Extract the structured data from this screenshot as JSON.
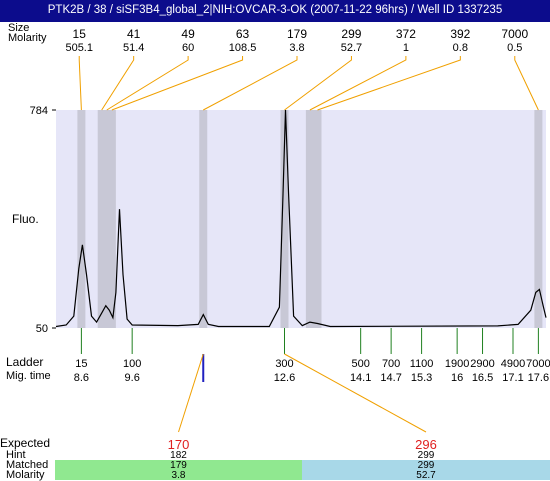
{
  "header": {
    "title": "PTK2B / 38 / siSF3B4_global_2|NIH:OVCAR-3-OK (2007-11-22 96hrs) / Well ID 1337235"
  },
  "row_labels": {
    "fluo": "Fluo.",
    "ladder": "Ladder",
    "mig_time": "Mig. time",
    "expected": "Expected",
    "hint": "Hint",
    "matched": "Matched",
    "molarity": "Molarity",
    "size_top": "Size",
    "molarity_top": "Molarity"
  },
  "colors": {
    "plot_bg": "#e6e6f8",
    "band": "#c8c8d6",
    "callout": "#f0a000",
    "ladder_tick": "#208020",
    "matched_green": "#90e890",
    "matched_blue": "#a8d8e8",
    "expected_red": "#e02020",
    "header_bg": "#0c0c8c",
    "trace": "#000000",
    "marker_blue": "#2020c0"
  },
  "chart_data": {
    "type": "line",
    "title": "PTK2B / 38 / siSF3B4_global_2|NIH:OVCAR-3-OK (2007-11-22 96hrs) / Well ID 1337235",
    "ylabel": "Fluo.",
    "xlabel": "Mig. time",
    "xlim": [
      8.1,
      17.75
    ],
    "ylim": [
      50,
      784
    ],
    "y_ticks": [
      "784",
      "50"
    ],
    "peaks_top": [
      {
        "size": "15",
        "molarity": "505.1",
        "time": 8.6
      },
      {
        "size": "41",
        "molarity": "51.4",
        "time": 9.0
      },
      {
        "size": "49",
        "molarity": "60",
        "time": 9.1
      },
      {
        "size": "63",
        "molarity": "108.5",
        "time": 9.2
      },
      {
        "size": "179",
        "molarity": "3.8",
        "time": 11.0
      },
      {
        "size": "299",
        "molarity": "52.7",
        "time": 12.6
      },
      {
        "size": "372",
        "molarity": "1",
        "time": 13.1
      },
      {
        "size": "392",
        "molarity": "0.8",
        "time": 13.25
      },
      {
        "size": "7000",
        "molarity": "0.5",
        "time": 17.6
      }
    ],
    "ladder": [
      {
        "size": "15",
        "time": "8.6",
        "t": 8.6
      },
      {
        "size": "100",
        "time": "9.6",
        "t": 9.6
      },
      {
        "size": "300",
        "time": "12.6",
        "t": 12.6
      },
      {
        "size": "500",
        "time": "14.1",
        "t": 14.1
      },
      {
        "size": "700",
        "time": "14.7",
        "t": 14.7
      },
      {
        "size": "1100",
        "time": "15.3",
        "t": 15.3
      },
      {
        "size": "1900",
        "time": "16",
        "t": 16.0
      },
      {
        "size": "2900",
        "time": "16.5",
        "t": 16.5
      },
      {
        "size": "4900",
        "time": "17.1",
        "t": 17.1
      },
      {
        "size": "7000",
        "time": "17.6",
        "t": 17.6
      }
    ],
    "trace": [
      [
        8.1,
        55
      ],
      [
        8.3,
        60
      ],
      [
        8.45,
        90
      ],
      [
        8.55,
        250
      ],
      [
        8.62,
        330
      ],
      [
        8.7,
        230
      ],
      [
        8.8,
        90
      ],
      [
        8.9,
        70
      ],
      [
        9.0,
        100
      ],
      [
        9.08,
        125
      ],
      [
        9.15,
        110
      ],
      [
        9.22,
        85
      ],
      [
        9.28,
        170
      ],
      [
        9.35,
        450
      ],
      [
        9.42,
        230
      ],
      [
        9.5,
        80
      ],
      [
        9.6,
        60
      ],
      [
        10.5,
        58
      ],
      [
        10.9,
        62
      ],
      [
        11.0,
        95
      ],
      [
        11.1,
        62
      ],
      [
        11.3,
        55
      ],
      [
        12.3,
        55
      ],
      [
        12.5,
        120
      ],
      [
        12.57,
        500
      ],
      [
        12.62,
        784
      ],
      [
        12.68,
        500
      ],
      [
        12.78,
        90
      ],
      [
        12.95,
        58
      ],
      [
        13.1,
        70
      ],
      [
        13.25,
        65
      ],
      [
        13.5,
        55
      ],
      [
        16.8,
        57
      ],
      [
        17.2,
        62
      ],
      [
        17.45,
        110
      ],
      [
        17.55,
        170
      ],
      [
        17.62,
        180
      ],
      [
        17.7,
        120
      ],
      [
        17.75,
        85
      ]
    ],
    "expected": [
      {
        "expected": "170",
        "hint": "182",
        "matched": "179",
        "molarity": "3.8",
        "time": 11.0
      },
      {
        "expected": "296",
        "hint": "299",
        "matched": "299",
        "molarity": "52.7",
        "time": 12.6
      }
    ]
  }
}
